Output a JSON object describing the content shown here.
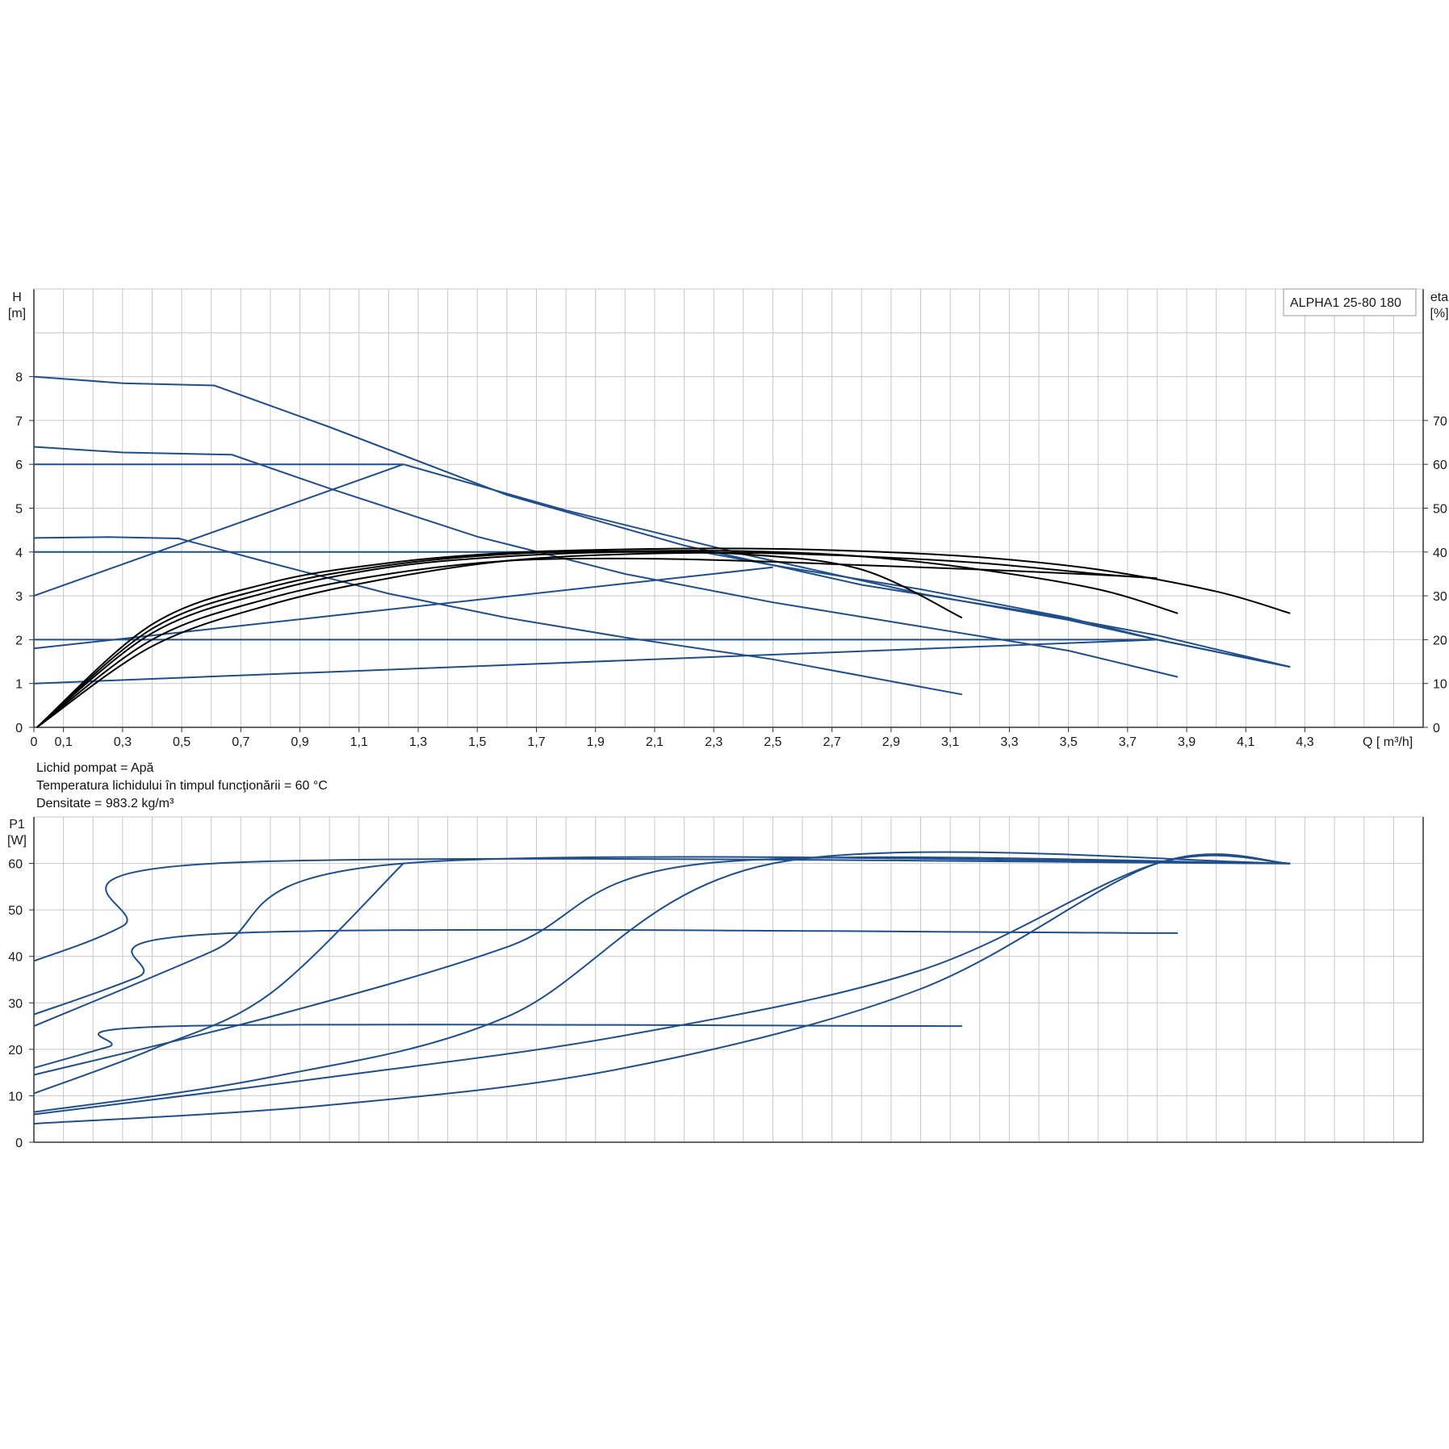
{
  "product_label": "ALPHA1 25-80 180",
  "info": {
    "line1": "Lichid pompat = Apă",
    "line2": "Temperatura lichidului în timpul funcţionării = 60  °C",
    "line3": "Densitate = 983.2  kg/m³"
  },
  "colors": {
    "curve": "#1f4e8c",
    "efficiency": "#000000",
    "grid": "#c8c8c8",
    "axis": "#333333"
  },
  "chart_data": [
    {
      "type": "line",
      "ylabel_top": "H",
      "ylabel_unit": "[m]",
      "y2label_top": "eta",
      "y2label_unit": "[%]",
      "xlabel": "Q [ m³/h]",
      "xlim": [
        0,
        4.7
      ],
      "ylim": [
        0,
        10
      ],
      "y2lim": [
        0,
        100
      ],
      "x_ticks": [
        "0",
        "0,1",
        "0,3",
        "0,5",
        "0,7",
        "0,9",
        "1,1",
        "1,3",
        "1,5",
        "1,7",
        "1,9",
        "2,1",
        "2,3",
        "2,5",
        "2,7",
        "2,9",
        "3,1",
        "3,3",
        "3,5",
        "3,7",
        "3,9",
        "4,1",
        "4,3"
      ],
      "x_tick_values": [
        0,
        0.1,
        0.3,
        0.5,
        0.7,
        0.9,
        1.1,
        1.3,
        1.5,
        1.7,
        1.9,
        2.1,
        2.3,
        2.5,
        2.7,
        2.9,
        3.1,
        3.3,
        3.5,
        3.7,
        3.9,
        4.1,
        4.3
      ],
      "y_ticks": [
        0,
        1,
        2,
        3,
        4,
        5,
        6,
        7,
        8
      ],
      "y2_ticks": [
        0,
        10,
        20,
        30,
        40,
        50,
        60,
        70
      ],
      "grid": true,
      "legend_position": "top-right",
      "head_series": [
        {
          "points": [
            [
              0,
              8.0
            ],
            [
              0.3,
              7.85
            ],
            [
              0.61,
              7.8
            ],
            [
              1.0,
              6.85
            ],
            [
              1.6,
              5.3
            ],
            [
              2.2,
              4.15
            ],
            [
              2.8,
              3.25
            ],
            [
              3.4,
              2.6
            ],
            [
              3.8,
              2.1
            ],
            [
              4.25,
              1.38
            ]
          ]
        },
        {
          "points": [
            [
              0,
              6.4
            ],
            [
              0.3,
              6.27
            ],
            [
              0.67,
              6.22
            ],
            [
              1.0,
              5.45
            ],
            [
              1.5,
              4.35
            ],
            [
              2.0,
              3.5
            ],
            [
              2.5,
              2.85
            ],
            [
              3.0,
              2.3
            ],
            [
              3.5,
              1.75
            ],
            [
              3.87,
              1.15
            ]
          ]
        },
        {
          "points": [
            [
              0,
              4.32
            ],
            [
              0.25,
              4.34
            ],
            [
              0.49,
              4.31
            ],
            [
              0.8,
              3.75
            ],
            [
              1.2,
              3.05
            ],
            [
              1.6,
              2.5
            ],
            [
              2.0,
              2.05
            ],
            [
              2.5,
              1.55
            ],
            [
              2.9,
              1.05
            ],
            [
              3.14,
              0.75
            ]
          ]
        },
        {
          "points": [
            [
              0,
              6.0
            ],
            [
              1.25,
              6.0
            ],
            [
              1.8,
              4.95
            ],
            [
              2.4,
              3.95
            ],
            [
              3.0,
              3.05
            ],
            [
              3.5,
              2.45
            ],
            [
              3.8,
              2.0
            ],
            [
              4.25,
              1.38
            ]
          ]
        },
        {
          "points": [
            [
              0,
              4.0
            ],
            [
              2.26,
              4.0
            ],
            [
              2.5,
              3.7
            ],
            [
              3.0,
              3.15
            ],
            [
              3.5,
              2.5
            ],
            [
              3.8,
              2.0
            ],
            [
              4.25,
              1.38
            ]
          ]
        },
        {
          "points": [
            [
              0,
              2.0
            ],
            [
              3.8,
              2.0
            ],
            [
              4.25,
              1.38
            ]
          ]
        },
        {
          "points": [
            [
              0,
              3.0
            ],
            [
              1.25,
              6.0
            ]
          ]
        },
        {
          "points": [
            [
              0,
              1.8
            ],
            [
              2.5,
              3.65
            ]
          ]
        },
        {
          "points": [
            [
              0,
              1.0
            ],
            [
              3.8,
              2.0
            ]
          ]
        }
      ],
      "efficiency_series": [
        {
          "points": [
            [
              0.01,
              0
            ],
            [
              0.4,
              21.5
            ],
            [
              0.8,
              31
            ],
            [
              1.2,
              36.5
            ],
            [
              1.6,
              39
            ],
            [
              2.0,
              40
            ],
            [
              2.4,
              39.5
            ],
            [
              2.8,
              36
            ],
            [
              3.14,
              25
            ]
          ]
        },
        {
          "points": [
            [
              0.01,
              0
            ],
            [
              0.4,
              22.5
            ],
            [
              0.8,
              32
            ],
            [
              1.2,
              37
            ],
            [
              1.6,
              39.5
            ],
            [
              2.0,
              40.2
            ],
            [
              2.4,
              40.2
            ],
            [
              2.8,
              39
            ],
            [
              3.2,
              36
            ],
            [
              3.6,
              31.5
            ],
            [
              3.87,
              26
            ]
          ]
        },
        {
          "points": [
            [
              0.01,
              0
            ],
            [
              0.4,
              23.5
            ],
            [
              0.8,
              33
            ],
            [
              1.2,
              37.5
            ],
            [
              1.6,
              39.8
            ],
            [
              2.0,
              40.6
            ],
            [
              2.4,
              40.8
            ],
            [
              2.8,
              40.2
            ],
            [
              3.2,
              38.8
            ],
            [
              3.6,
              36
            ],
            [
              4.0,
              31
            ],
            [
              4.25,
              26
            ]
          ]
        },
        {
          "points": [
            [
              0.01,
              0
            ],
            [
              0.4,
              20
            ],
            [
              0.8,
              29.5
            ],
            [
              1.2,
              35
            ],
            [
              1.6,
              38
            ],
            [
              2.0,
              38.5
            ],
            [
              2.4,
              38
            ],
            [
              2.8,
              37
            ],
            [
              3.2,
              36
            ],
            [
              3.6,
              34.8
            ],
            [
              3.8,
              34
            ]
          ]
        },
        {
          "points": [
            [
              0.01,
              0
            ],
            [
              0.4,
              18.5
            ],
            [
              0.8,
              28
            ],
            [
              1.2,
              34
            ],
            [
              1.6,
              38
            ],
            [
              2.0,
              39.5
            ],
            [
              2.4,
              39.8
            ],
            [
              2.8,
              39
            ],
            [
              3.2,
              37.5
            ],
            [
              3.6,
              35
            ],
            [
              3.8,
              34
            ]
          ]
        }
      ]
    },
    {
      "type": "line",
      "ylabel_top": "P1",
      "ylabel_unit": "[W]",
      "xlim": [
        0,
        4.7
      ],
      "ylim": [
        0,
        70
      ],
      "y_ticks": [
        0,
        10,
        20,
        30,
        40,
        50,
        60
      ],
      "grid": true,
      "power_series": [
        {
          "points": [
            [
              0,
              39
            ],
            [
              0.3,
              46.5
            ],
            [
              0.61,
              60
            ],
            [
              4.25,
              60
            ]
          ]
        },
        {
          "points": [
            [
              0,
              27.5
            ],
            [
              0.35,
              35.5
            ],
            [
              0.67,
              45
            ],
            [
              3.87,
              45
            ]
          ]
        },
        {
          "points": [
            [
              0,
              16
            ],
            [
              0.25,
              20.5
            ],
            [
              0.49,
              25
            ],
            [
              3.14,
              25
            ]
          ]
        },
        {
          "points": [
            [
              0,
              25
            ],
            [
              0.6,
              41
            ],
            [
              1.25,
              60
            ],
            [
              4.25,
              60
            ]
          ]
        },
        {
          "points": [
            [
              0,
              10.5
            ],
            [
              0.4,
              20
            ],
            [
              0.8,
              32
            ],
            [
              1.25,
              60
            ]
          ]
        },
        {
          "points": [
            [
              0,
              14.5
            ],
            [
              0.8,
              27
            ],
            [
              1.6,
              42
            ],
            [
              2.27,
              60
            ],
            [
              4.25,
              60
            ]
          ]
        },
        {
          "points": [
            [
              0,
              6.5
            ],
            [
              0.8,
              14
            ],
            [
              1.6,
              27
            ],
            [
              2.5,
              60
            ],
            [
              4.25,
              60
            ]
          ]
        },
        {
          "points": [
            [
              0,
              6
            ],
            [
              1.0,
              14
            ],
            [
              2.0,
              23
            ],
            [
              3.0,
              37
            ],
            [
              3.8,
              60
            ],
            [
              4.25,
              60
            ]
          ]
        },
        {
          "points": [
            [
              0,
              4
            ],
            [
              1.0,
              8
            ],
            [
              2.0,
              16
            ],
            [
              3.0,
              33
            ],
            [
              3.8,
              60
            ],
            [
              4.25,
              60
            ]
          ]
        }
      ]
    }
  ]
}
